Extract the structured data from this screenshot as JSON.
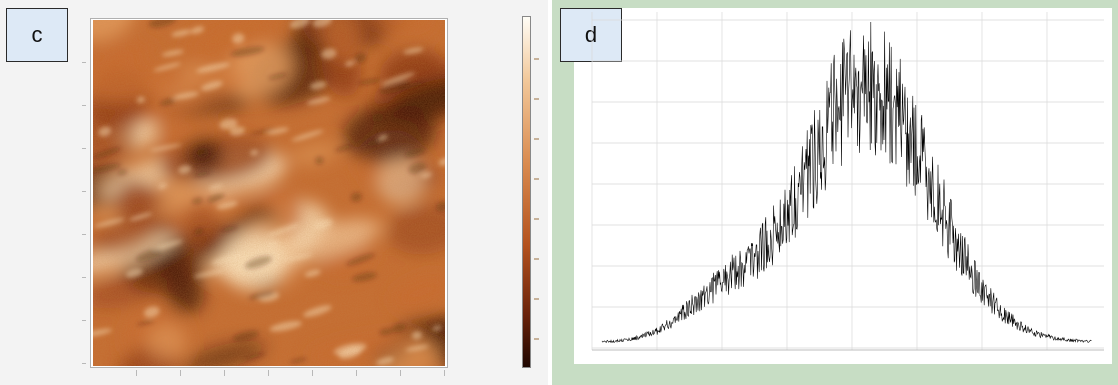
{
  "panels": {
    "c": {
      "label": "c",
      "colors": {
        "peak": "#ffe9c4",
        "high": "#e9a263",
        "mid": "#c8682c",
        "low": "#8a3410",
        "valley": "#3a1004"
      }
    },
    "d": {
      "label": "d",
      "colors": {
        "background": "#c7ddc4",
        "plot": "#ffffff",
        "trace": "#000000",
        "grid": "#d8d8d8"
      }
    }
  }
}
